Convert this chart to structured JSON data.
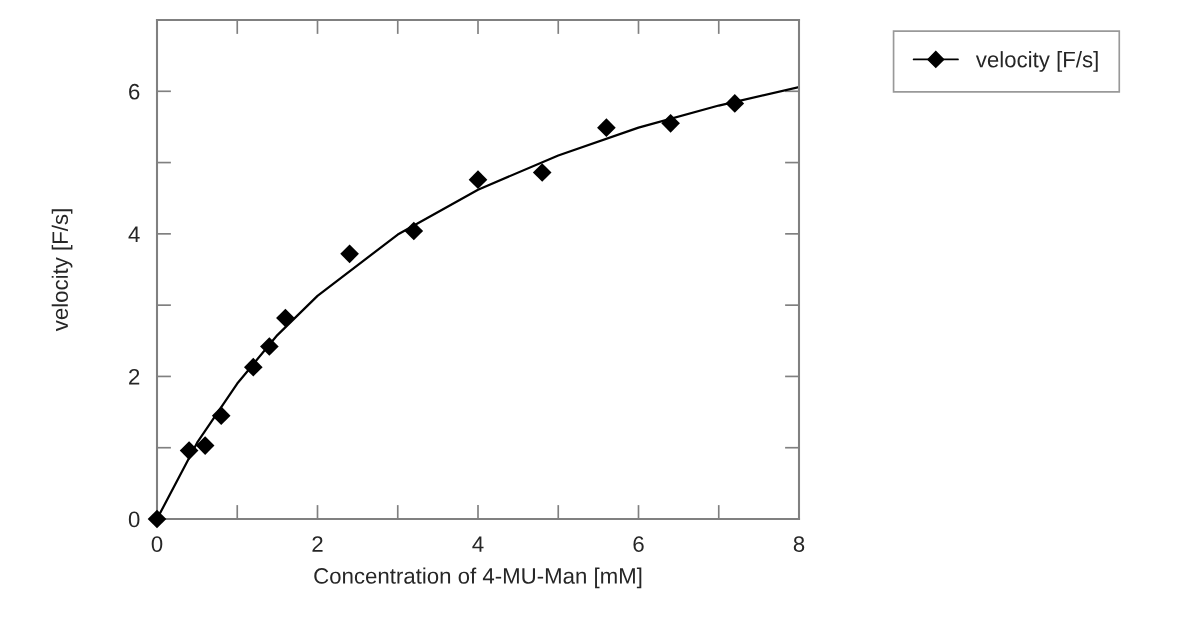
{
  "chart_data": {
    "type": "scatter",
    "xlabel": "Concentration of 4-MU-Man [mM]",
    "ylabel": "velocity [F/s]",
    "xlim": [
      0,
      8
    ],
    "ylim": [
      0,
      7
    ],
    "xticks": [
      0,
      {
        "value": 1,
        "label": null
      },
      2,
      {
        "value": 3,
        "label": null
      },
      4,
      {
        "value": 5,
        "label": null
      },
      6,
      {
        "value": 7,
        "label": null
      },
      8
    ],
    "yticks": [
      0,
      {
        "value": 1,
        "label": null
      },
      2,
      {
        "value": 3,
        "label": null
      },
      4,
      {
        "value": 5,
        "label": null
      },
      6,
      {
        "value": 7,
        "label": null
      }
    ],
    "grid": false,
    "legend": "top right",
    "marker": "diamond",
    "series": [
      {
        "name": "velocity [F/s]",
        "color": "#000000",
        "x": [
          0,
          0.4,
          0.6,
          0.8,
          1.2,
          1.4,
          1.6,
          2.4,
          3.2,
          4.0,
          4.8,
          5.6,
          6.4,
          7.2
        ],
        "values": [
          0,
          0.96,
          1.03,
          1.45,
          2.13,
          2.42,
          2.82,
          3.72,
          4.04,
          4.76,
          4.86,
          5.49,
          5.55,
          5.83
        ]
      },
      {
        "type": "line",
        "color": "#000000",
        "marker": "none",
        "x": [
          0,
          0.5,
          1,
          1.5,
          2,
          3,
          4,
          5,
          6,
          7,
          8
        ],
        "values": [
          0,
          1.07,
          1.9,
          2.58,
          3.13,
          3.99,
          4.62,
          5.1,
          5.49,
          5.8,
          6.06
        ]
      }
    ]
  }
}
